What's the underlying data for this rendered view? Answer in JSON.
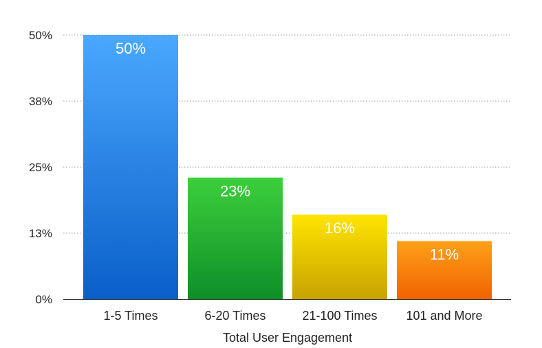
{
  "chart_data": {
    "type": "bar",
    "categories": [
      "1-5 Times",
      "6-20 Times",
      "21-100 Times",
      "101 and More"
    ],
    "values": [
      50,
      23,
      16,
      11
    ],
    "data_labels": [
      "50%",
      "23%",
      "16%",
      "11%"
    ],
    "title": "",
    "xlabel": "Total User Engagement",
    "ylabel": "",
    "ylim": [
      0,
      50
    ],
    "y_ticks": [
      0,
      12.5,
      25,
      37.5,
      50
    ],
    "y_tick_labels": [
      "0%",
      "13%",
      "25%",
      "38%",
      "50%"
    ],
    "grid": "dotted horizontal",
    "legend": "none",
    "bar_colors": [
      {
        "top": "#4aa8ff",
        "bottom": "#0a5fc8"
      },
      {
        "top": "#3ccf3c",
        "bottom": "#0e8f28"
      },
      {
        "top": "#ffe400",
        "bottom": "#c9a200"
      },
      {
        "top": "#ffa01a",
        "bottom": "#f06200"
      }
    ]
  }
}
